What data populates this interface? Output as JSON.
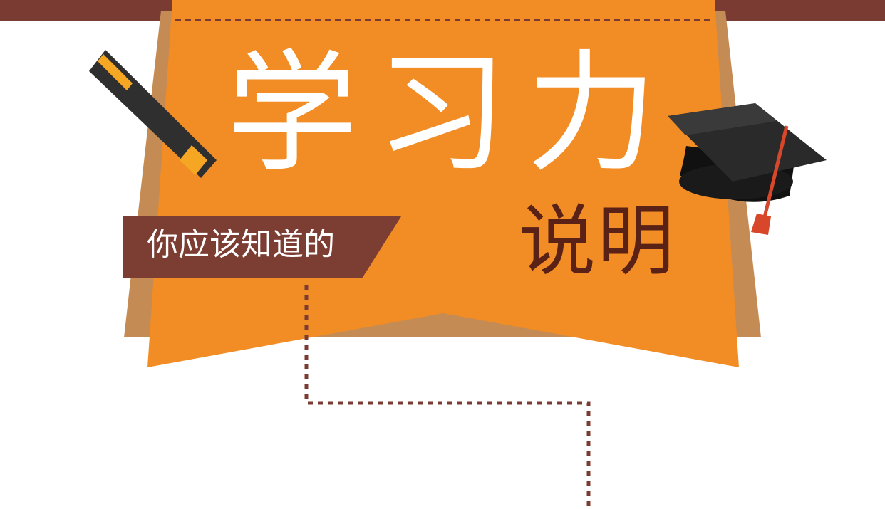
{
  "banner": {
    "title": "学习力",
    "subtitle": "说明"
  },
  "tag": {
    "label": "你应该知道的"
  },
  "colors": {
    "top_bar": "#7a3b32",
    "banner_orange": "#f28c24",
    "banner_shadow": "#c58b55",
    "tag_brown": "#7c3d33",
    "subtitle_text": "#5a2116",
    "dotted_line": "#7a3b32",
    "pencil_body": "#2f2f2f",
    "pencil_accent": "#f5a623",
    "cap_black": "#1f1f1f",
    "tassel_red": "#d9472b"
  },
  "icons": [
    "pencil-icon",
    "graduation-cap-icon"
  ]
}
